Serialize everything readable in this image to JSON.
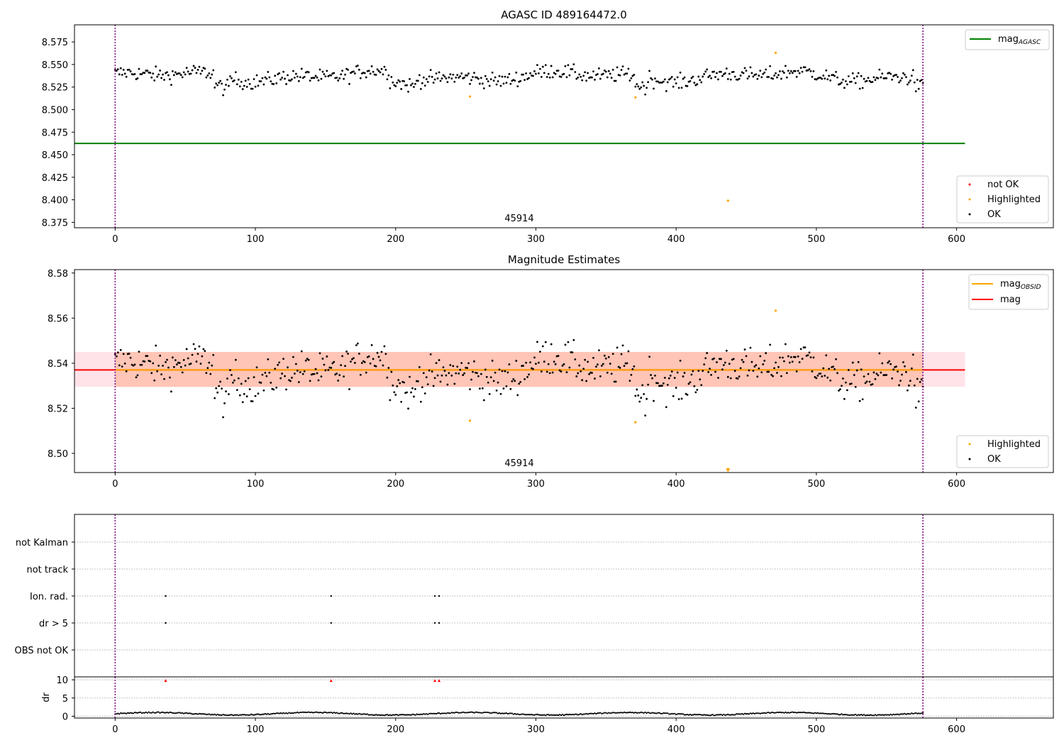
{
  "chart_data": [
    {
      "type": "scatter",
      "title": "AGASC ID 489164472.0",
      "annotation": "45914",
      "xlim": [
        -29,
        669
      ],
      "ylim": [
        8.369,
        8.594
      ],
      "xticks": [
        0,
        100,
        200,
        300,
        400,
        500,
        600
      ],
      "yticks": [
        8.375,
        8.4,
        8.425,
        8.45,
        8.475,
        8.5,
        8.525,
        8.55,
        8.575
      ],
      "ytick_decimals": 3,
      "vlines": [
        0,
        576
      ],
      "series": [
        {
          "name": "mag_AGASC",
          "kind": "hline",
          "y": 8.4625,
          "x": [
            -29,
            606
          ],
          "color": "#008000"
        },
        {
          "name": "not OK",
          "kind": "points",
          "color": "#ff0000",
          "points": []
        },
        {
          "name": "Highlighted",
          "kind": "points",
          "color": "#ffa500",
          "points": [
            [
              253,
              8.5145
            ],
            [
              371,
              8.5135
            ],
            [
              437,
              8.399
            ],
            [
              471,
              8.563
            ]
          ]
        },
        {
          "name": "OK",
          "kind": "noise",
          "color": "#000000",
          "n": 577,
          "x_start": 0,
          "x_step": 1,
          "base": 8.537,
          "amplitude": 0.0095
        }
      ],
      "legend_top": {
        "position": "top-right",
        "entries": [
          {
            "label_main": "mag",
            "label_sub": "AGASC",
            "color": "#008000"
          }
        ]
      },
      "legend_bottom": {
        "position": "lower-right",
        "entries": [
          {
            "label": "not OK",
            "color": "#ff0000"
          },
          {
            "label": "Highlighted",
            "color": "#ffa500"
          },
          {
            "label": "OK",
            "color": "#000000"
          }
        ]
      }
    },
    {
      "type": "scatter",
      "title": "Magnitude Estimates",
      "annotation": "45914",
      "xlim": [
        -29,
        669
      ],
      "ylim": [
        8.4915,
        8.5815
      ],
      "xticks": [
        0,
        100,
        200,
        300,
        400,
        500,
        600
      ],
      "yticks": [
        8.5,
        8.52,
        8.54,
        8.56,
        8.58
      ],
      "ytick_decimals": 2,
      "vlines": [
        0,
        576
      ],
      "bands": [
        {
          "y0": 8.5295,
          "y1": 8.545,
          "x": [
            -29,
            606
          ],
          "color": "#ffc0cb"
        },
        {
          "y0": 8.5295,
          "y1": 8.545,
          "x": [
            0,
            576
          ],
          "color": "#ffa07a"
        }
      ],
      "series": [
        {
          "name": "mag",
          "kind": "hline",
          "y": 8.537,
          "x": [
            -29,
            606
          ],
          "color": "#ff0000"
        },
        {
          "name": "mag_OBSID",
          "kind": "hline",
          "y": 8.537,
          "x": [
            0,
            576
          ],
          "color": "#ffa500"
        },
        {
          "name": "Highlighted",
          "kind": "points",
          "color": "#ffa500",
          "points": [
            [
              253,
              8.5145
            ],
            [
              371,
              8.5138
            ],
            [
              471,
              8.5633
            ]
          ]
        },
        {
          "name": "Highlighted (off-scale)",
          "kind": "markers",
          "color": "#ffa500",
          "points": [
            [
              437,
              8.4925
            ]
          ]
        },
        {
          "name": "OK",
          "kind": "noise",
          "color": "#000000",
          "n": 577,
          "x_start": 0,
          "x_step": 1,
          "base": 8.537,
          "amplitude": 0.0095
        }
      ],
      "legend_top": {
        "position": "top-right",
        "entries": [
          {
            "label_main": "mag",
            "label_sub": "OBSID",
            "color": "#ffa500"
          },
          {
            "label_main": "mag",
            "label_sub": "",
            "color": "#ff0000"
          }
        ]
      },
      "legend_bottom": {
        "position": "lower-right",
        "entries": [
          {
            "label": "Highlighted",
            "color": "#ffa500"
          },
          {
            "label": "OK",
            "color": "#000000"
          }
        ]
      }
    },
    {
      "type": "scatter",
      "title": "",
      "xlim": [
        -29,
        669
      ],
      "categories": [
        "not Kalman",
        "not track",
        "Ion. rad.",
        "dr > 5",
        "OBS not OK"
      ],
      "vlines": [
        0,
        576
      ],
      "flag_points": {
        "Ion. rad.": [
          36,
          154,
          228,
          231
        ],
        "dr > 5": [
          36,
          154,
          228,
          231
        ]
      }
    },
    {
      "type": "line",
      "title": "",
      "ylabel": "dr",
      "xlim": [
        -29,
        669
      ],
      "ylim": [
        -0.5,
        10.8
      ],
      "xticks": [
        0,
        100,
        200,
        300,
        400,
        500,
        600
      ],
      "yticks": [
        0,
        5,
        10
      ],
      "vlines": [
        0,
        576
      ],
      "threshold_points": {
        "color": "#ff0000",
        "y": 9.8,
        "x": [
          36,
          154,
          228,
          231
        ]
      },
      "series": [
        {
          "name": "dr",
          "kind": "dr",
          "color": "#000000",
          "n": 577,
          "x_start": 0,
          "x_step": 1
        }
      ]
    }
  ]
}
